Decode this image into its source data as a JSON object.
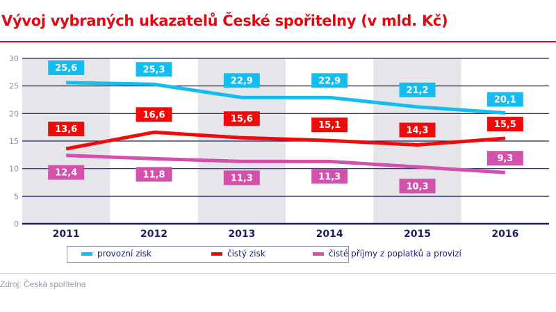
{
  "chart_data": {
    "type": "line",
    "title": "Vývoj vybraných ukazatelů České spořitelny (v mld. Kč)",
    "categories": [
      "2011",
      "2012",
      "2013",
      "2014",
      "2015",
      "2016"
    ],
    "ylim": [
      0,
      30
    ],
    "yticks": [
      0,
      5,
      10,
      15,
      20,
      25,
      30
    ],
    "grid": true,
    "legend": "bottom",
    "series": [
      {
        "name": "provozní zisk",
        "color": "#13bdf0",
        "values": [
          25.6,
          25.3,
          22.9,
          22.9,
          21.2,
          20.1
        ],
        "labels": [
          "25,6",
          "25,3",
          "22,9",
          "22,9",
          "21,2",
          "20,1"
        ]
      },
      {
        "name": "čistý zisk",
        "color": "#f00a0a",
        "values": [
          13.6,
          16.6,
          15.6,
          15.1,
          14.3,
          15.5
        ],
        "labels": [
          "13,6",
          "16,6",
          "15,6",
          "15,1",
          "14,3",
          "15,5"
        ]
      },
      {
        "name": "čisté příjmy z poplatků a provizí",
        "color": "#d450ad",
        "values": [
          12.4,
          11.8,
          11.3,
          11.3,
          10.3,
          9.3
        ],
        "labels": [
          "12,4",
          "11,8",
          "11,3",
          "11,3",
          "10,3",
          "9,3"
        ]
      }
    ],
    "band_color": "#e6e6ea"
  },
  "source": "Zdroj: Česká spořitelna"
}
